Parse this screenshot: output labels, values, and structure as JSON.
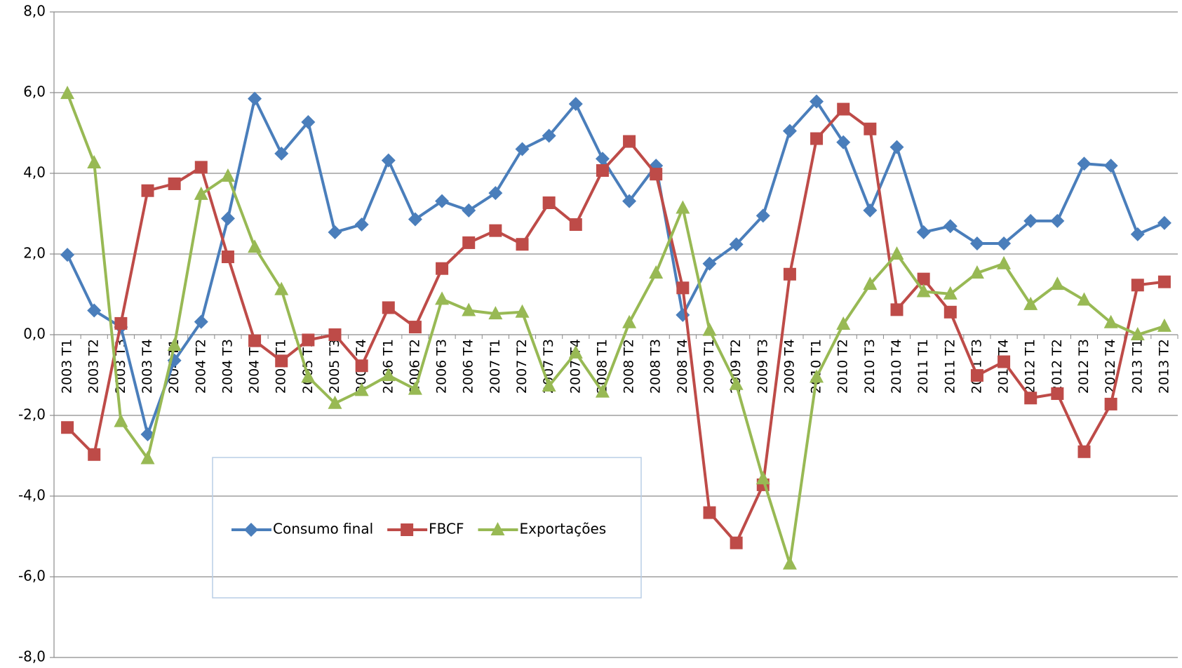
{
  "chart_data": {
    "type": "line",
    "categories": [
      "2003 T1",
      "2003 T2",
      "2003 T3",
      "2003 T4",
      "2004 T1",
      "2004 T2",
      "2004 T3",
      "2004 T4",
      "2005 T1",
      "2005 T2",
      "2005 T3",
      "2005 T4",
      "2006 T1",
      "2006 T2",
      "2006 T3",
      "2006 T4",
      "2007 T1",
      "2007 T2",
      "2007 T3",
      "2007 T4",
      "2008 T1",
      "2008 T2",
      "2008 T3",
      "2008 T4",
      "2009 T1",
      "2009 T2",
      "2009 T3",
      "2009 T4",
      "2010 T1",
      "2010 T2",
      "2010 T3",
      "2010 T4",
      "2011 T1",
      "2011 T2",
      "2011 T3",
      "2011 T4",
      "2012 T1",
      "2012 T2",
      "2012 T3",
      "2012 T4",
      "2013 T1",
      "2013 T2"
    ],
    "series": [
      {
        "name": "Consumo final",
        "color": "#4a7ebb",
        "marker": "diamond",
        "values": [
          1.98,
          0.6,
          0.19,
          -2.47,
          -0.64,
          0.32,
          2.88,
          5.85,
          4.49,
          5.27,
          2.54,
          2.73,
          4.32,
          2.86,
          3.31,
          3.08,
          3.51,
          4.6,
          4.93,
          5.72,
          4.36,
          3.31,
          4.19,
          0.49,
          1.76,
          2.24,
          2.95,
          5.05,
          5.78,
          4.77,
          3.08,
          4.65,
          2.54,
          2.69,
          2.26,
          2.26,
          2.82,
          2.82,
          4.24,
          4.19,
          2.49,
          2.77
        ]
      },
      {
        "name": "FBCF",
        "color": "#be4b48",
        "marker": "square",
        "values": [
          -2.3,
          -2.97,
          0.28,
          3.57,
          3.74,
          4.15,
          1.93,
          -0.15,
          -0.65,
          -0.13,
          0.0,
          -0.77,
          0.67,
          0.19,
          1.64,
          2.28,
          2.58,
          2.24,
          3.27,
          2.73,
          4.07,
          4.79,
          3.98,
          1.16,
          -4.41,
          -5.16,
          -3.72,
          1.5,
          4.86,
          5.59,
          5.1,
          0.62,
          1.38,
          0.56,
          -1.01,
          -0.67,
          -1.57,
          -1.46,
          -2.9,
          -1.72,
          1.23,
          1.31
        ]
      },
      {
        "name": "Exportações",
        "color": "#98b954",
        "marker": "triangle",
        "values": [
          5.98,
          4.26,
          -2.15,
          -3.07,
          -0.26,
          3.48,
          3.93,
          2.17,
          1.12,
          -1.05,
          -1.7,
          -1.38,
          -1.01,
          -1.35,
          0.88,
          0.6,
          0.52,
          0.56,
          -1.27,
          -0.45,
          -1.42,
          0.3,
          1.53,
          3.14,
          0.11,
          -1.23,
          -3.57,
          -5.68,
          -1.05,
          0.26,
          1.25,
          2.0,
          1.07,
          1.01,
          1.53,
          1.76,
          0.75,
          1.25,
          0.86,
          0.3,
          0.0,
          0.21
        ]
      }
    ],
    "ylim": [
      -8,
      8
    ],
    "yticks": [
      {
        "value": -8,
        "label": "-8,0"
      },
      {
        "value": -6,
        "label": "-6,0"
      },
      {
        "value": -4,
        "label": "-4,0"
      },
      {
        "value": -2,
        "label": "-2,0"
      },
      {
        "value": 0,
        "label": "0,0"
      },
      {
        "value": 2,
        "label": "2,0"
      },
      {
        "value": 4,
        "label": "4,0"
      },
      {
        "value": 6,
        "label": "6,0"
      },
      {
        "value": 8,
        "label": "8,0"
      }
    ],
    "grid": true
  }
}
